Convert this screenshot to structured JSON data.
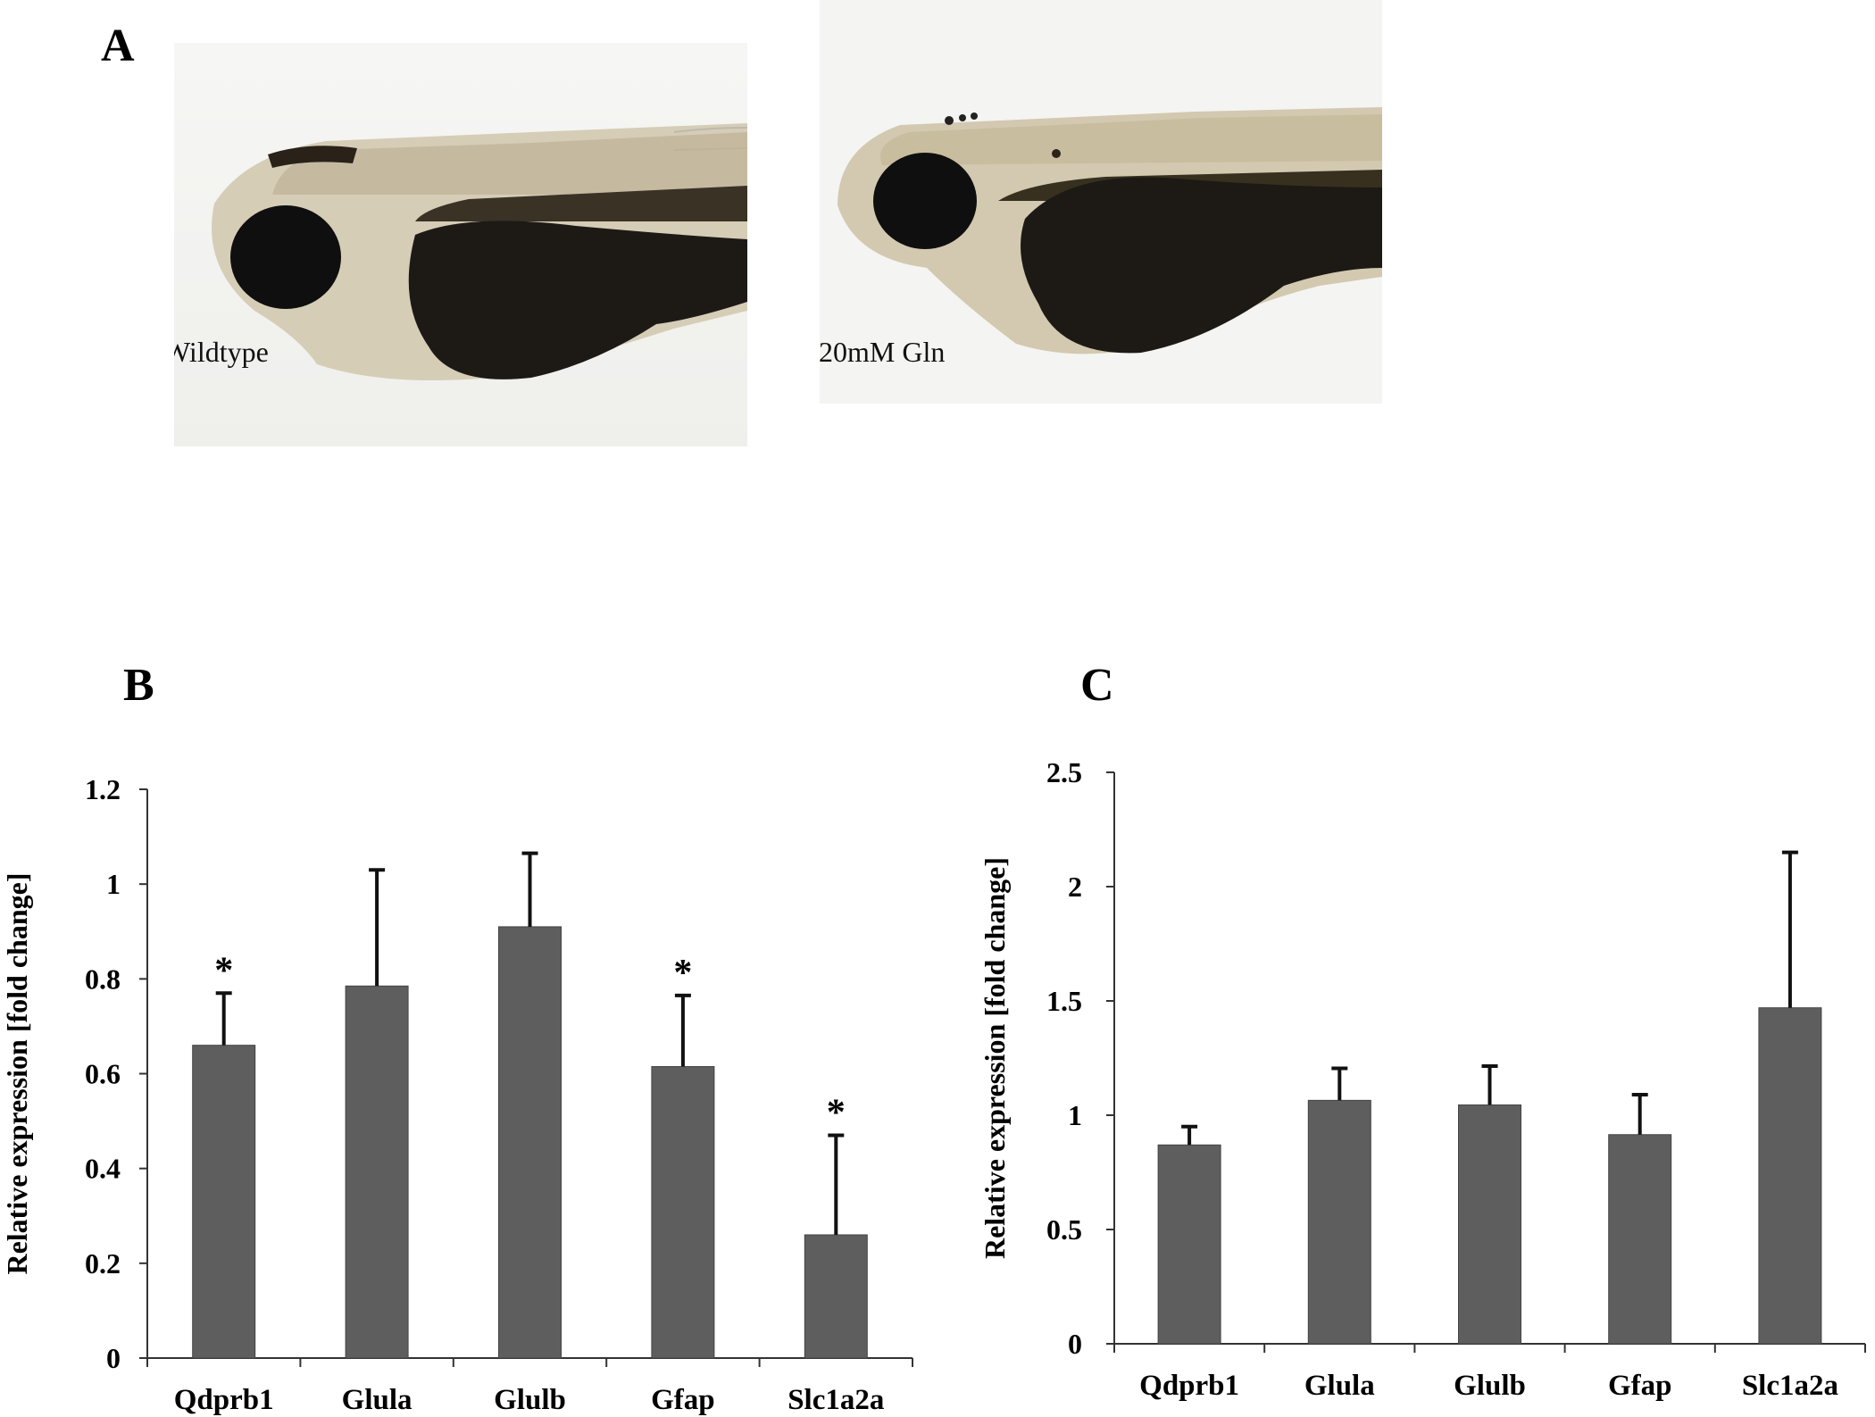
{
  "panels": {
    "A": {
      "letter": "A",
      "images": [
        {
          "label": "Wildtype"
        },
        {
          "label": "20mM Gln"
        }
      ]
    },
    "B": {
      "letter": "B"
    },
    "C": {
      "letter": "C"
    }
  },
  "colors": {
    "bar": "#5e5e5e",
    "axis": "#333333",
    "text": "#000000"
  },
  "chart_data": [
    {
      "type": "bar",
      "panel": "B",
      "ylabel": "Relative expression [fold change]",
      "ylim": [
        0,
        1.2
      ],
      "yticks": [
        0,
        0.2,
        0.4,
        0.6,
        0.8,
        1,
        1.2
      ],
      "ytick_labels": [
        "0",
        "0.2",
        "0.4",
        "0.6",
        "0.8",
        "1",
        "1.2"
      ],
      "categories": [
        "Qdprb1",
        "Glula",
        "Glulb",
        "Gfap",
        "Slc1a2a"
      ],
      "values": [
        0.66,
        0.785,
        0.91,
        0.615,
        0.26
      ],
      "errors": [
        0.11,
        0.245,
        0.155,
        0.15,
        0.21
      ],
      "significance": [
        "*",
        "",
        "",
        "*",
        "*"
      ]
    },
    {
      "type": "bar",
      "panel": "C",
      "ylabel": "Relative expression [fold change]",
      "ylim": [
        0,
        2.5
      ],
      "yticks": [
        0,
        0.5,
        1,
        1.5,
        2,
        2.5
      ],
      "ytick_labels": [
        "0",
        "0.5",
        "1",
        "1.5",
        "2",
        "2.5"
      ],
      "categories": [
        "Qdprb1",
        "Glula",
        "Glulb",
        "Gfap",
        "Slc1a2a"
      ],
      "values": [
        0.87,
        1.065,
        1.045,
        0.915,
        1.47
      ],
      "errors": [
        0.08,
        0.14,
        0.17,
        0.175,
        0.68
      ],
      "significance": [
        "",
        "",
        "",
        "",
        ""
      ]
    }
  ]
}
